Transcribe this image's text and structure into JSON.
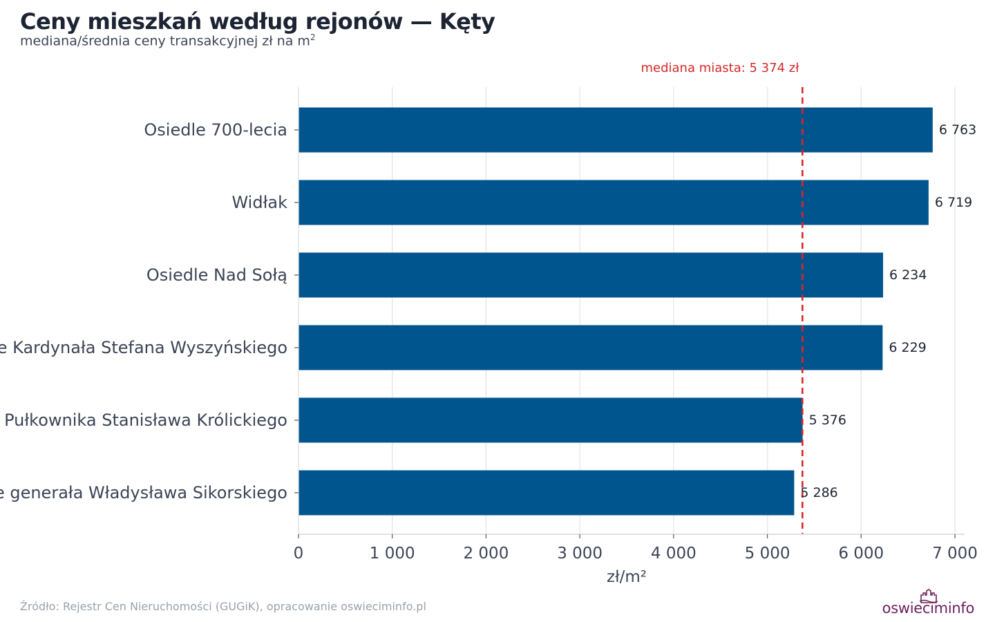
{
  "chart_data": {
    "type": "bar",
    "orientation": "horizontal",
    "title": "Ceny mieszkań według rejonów — Kęty",
    "subtitle": "mediana/średnia ceny transakcyjnej zł na m",
    "subtitle_sup": "2",
    "xlabel": "zł/m²",
    "xlim": [
      0,
      7000
    ],
    "xticks": [
      0,
      1000,
      2000,
      3000,
      4000,
      5000,
      6000,
      7000
    ],
    "xtick_labels": [
      "0",
      "1 000",
      "2 000",
      "3 000",
      "4 000",
      "5 000",
      "6 000",
      "7 000"
    ],
    "grid": true,
    "categories": [
      "Osiedle 700-lecia",
      "Widłak",
      "Osiedle Nad Sołą",
      "Osiedle Kardynała Stefana Wyszyńskiego",
      "Osiedle Pułkownika Stanisława Królickiego",
      "Osiedle generała Władysława Sikorskiego"
    ],
    "values": [
      6763,
      6719,
      6234,
      6229,
      5376,
      5286
    ],
    "value_labels": [
      "6 763",
      "6 719",
      "6 234",
      "6 229",
      "5 376",
      "5 286"
    ],
    "bar_color": "#01558f",
    "reference_line": {
      "value": 5374,
      "label": "mediana miasta: 5 374 zł",
      "color": "#d62728"
    }
  },
  "footer": {
    "source": "Źródło: Rejestr Cen Nieruchomości (GUGiK), opracowanie oswieciminfo.pl",
    "logo_part1": "oswiecim",
    "logo_part2": "info"
  }
}
